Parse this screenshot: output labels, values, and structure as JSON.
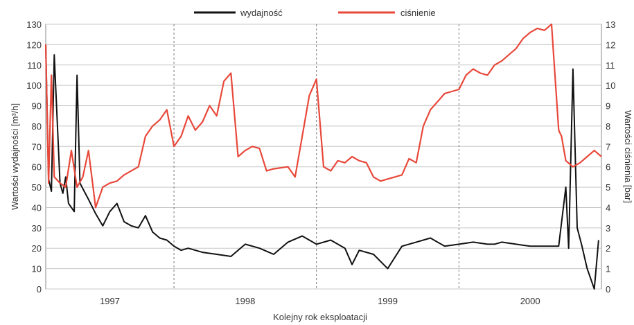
{
  "chart_data": {
    "type": "line",
    "xlabel": "Kolejny rok eksploatacji",
    "ylabel_left": "Wartości wydajności [m³/h]",
    "ylabel_right": "Wartości ciśnienia [bar]",
    "ylim_left": [
      0,
      130
    ],
    "ylim_right": [
      0,
      13
    ],
    "yticks_left": [
      "0",
      "10",
      "20",
      "30",
      "40",
      "50",
      "60",
      "70",
      "80",
      "90",
      "100",
      "110",
      "120",
      "130"
    ],
    "yticks_right": [
      "0",
      "1",
      "2",
      "3",
      "4",
      "5",
      "6",
      "7",
      "8",
      "9",
      "10",
      "11",
      "12",
      "13"
    ],
    "x_categories": [
      "1997",
      "1998",
      "1999",
      "2000"
    ],
    "xlim": [
      1996.6,
      2000.5
    ],
    "year_boundaries": [
      1997.5,
      1998.5,
      1999.5
    ],
    "grid": true,
    "legend_placement": "top-center",
    "series": [
      {
        "name": "wydajność",
        "axis": "left",
        "color": "#111111",
        "x": [
          1996.6,
          1996.62,
          1996.64,
          1996.66,
          1996.7,
          1996.72,
          1996.74,
          1996.76,
          1996.8,
          1996.82,
          1996.84,
          1996.87,
          1996.9,
          1996.95,
          1997.0,
          1997.05,
          1997.1,
          1997.15,
          1997.2,
          1997.25,
          1997.3,
          1997.35,
          1997.4,
          1997.45,
          1997.5,
          1997.55,
          1997.6,
          1997.7,
          1997.8,
          1997.9,
          1998.0,
          1998.1,
          1998.2,
          1998.3,
          1998.4,
          1998.5,
          1998.6,
          1998.7,
          1998.75,
          1998.8,
          1998.9,
          1999.0,
          1999.1,
          1999.2,
          1999.3,
          1999.4,
          1999.5,
          1999.6,
          1999.7,
          1999.75,
          1999.8,
          1999.9,
          2000.0,
          2000.1,
          2000.2,
          2000.25,
          2000.27,
          2000.3,
          2000.33,
          2000.36,
          2000.4,
          2000.45,
          2000.48
        ],
        "values": [
          120,
          54,
          48,
          115,
          52,
          47,
          55,
          42,
          38,
          105,
          52,
          48,
          44,
          37,
          31,
          38,
          42,
          33,
          31,
          30,
          36,
          28,
          25,
          24,
          21,
          19,
          20,
          18,
          17,
          16,
          22,
          20,
          17,
          23,
          26,
          22,
          24,
          20,
          12,
          19,
          17,
          10,
          21,
          23,
          25,
          21,
          22,
          23,
          22,
          22,
          23,
          22,
          21,
          21,
          21,
          50,
          20,
          108,
          30,
          22,
          10,
          0,
          24
        ]
      },
      {
        "name": "ciśnienie",
        "axis": "right",
        "color": "#e8483a",
        "x": [
          1996.6,
          1996.62,
          1996.64,
          1996.66,
          1996.7,
          1996.74,
          1996.78,
          1996.82,
          1996.86,
          1996.9,
          1996.95,
          1997.0,
          1997.05,
          1997.1,
          1997.15,
          1997.2,
          1997.25,
          1997.3,
          1997.35,
          1997.4,
          1997.45,
          1997.5,
          1997.55,
          1997.6,
          1997.65,
          1997.7,
          1997.75,
          1997.8,
          1997.85,
          1997.9,
          1997.95,
          1998.0,
          1998.05,
          1998.1,
          1998.15,
          1998.2,
          1998.3,
          1998.35,
          1998.4,
          1998.45,
          1998.5,
          1998.55,
          1998.6,
          1998.65,
          1998.7,
          1998.75,
          1998.8,
          1998.85,
          1998.9,
          1998.95,
          1999.0,
          1999.05,
          1999.1,
          1999.15,
          1999.2,
          1999.25,
          1999.3,
          1999.35,
          1999.4,
          1999.45,
          1999.5,
          1999.55,
          1999.6,
          1999.65,
          1999.7,
          1999.75,
          1999.8,
          1999.85,
          1999.9,
          1999.95,
          2000.0,
          2000.05,
          2000.1,
          2000.15,
          2000.2,
          2000.22,
          2000.25,
          2000.3,
          2000.35,
          2000.4,
          2000.45,
          2000.5
        ],
        "values": [
          12,
          5.2,
          10.5,
          5.5,
          5.2,
          5.0,
          6.8,
          5.0,
          5.5,
          6.8,
          4.0,
          5.0,
          5.2,
          5.3,
          5.6,
          5.8,
          6.0,
          7.5,
          8.0,
          8.3,
          8.8,
          7.0,
          7.5,
          8.5,
          7.8,
          8.2,
          9.0,
          8.5,
          10.2,
          10.6,
          6.5,
          6.8,
          7.0,
          6.9,
          5.8,
          5.9,
          6.0,
          5.5,
          7.5,
          9.5,
          10.3,
          6.0,
          5.8,
          6.3,
          6.2,
          6.5,
          6.3,
          6.2,
          5.5,
          5.3,
          5.4,
          5.5,
          5.6,
          6.4,
          6.2,
          8.0,
          8.8,
          9.2,
          9.6,
          9.7,
          9.8,
          10.5,
          10.8,
          10.6,
          10.5,
          11.0,
          11.2,
          11.5,
          11.8,
          12.3,
          12.6,
          12.8,
          12.7,
          13.0,
          7.8,
          7.5,
          6.3,
          6.0,
          6.2,
          6.5,
          6.8,
          6.5
        ]
      }
    ]
  }
}
